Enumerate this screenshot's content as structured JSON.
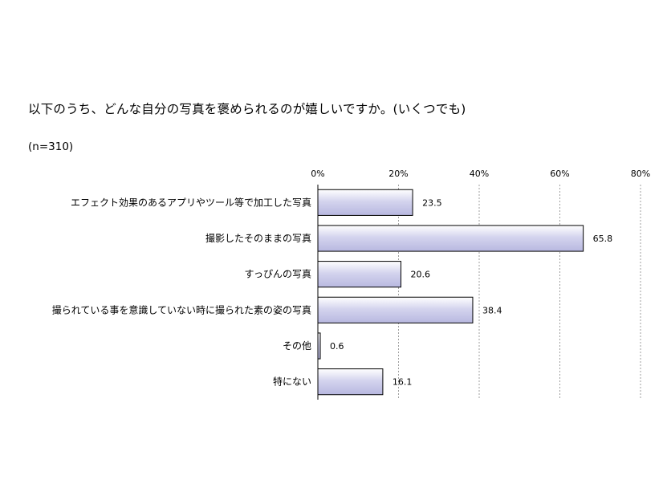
{
  "chart_data": {
    "type": "bar",
    "orientation": "horizontal",
    "title": "以下のうち、どんな自分の写真を褒められるのが嬉しいですか。(いくつでも)",
    "subtitle": "(n=310)",
    "categories": [
      "エフェクト効果のあるアプリやツール等で加工した写真",
      "撮影したそのままの写真",
      "すっぴんの写真",
      "撮られている事を意識していない時に撮られた素の姿の写真",
      "その他",
      "特にない"
    ],
    "values": [
      23.5,
      65.8,
      20.6,
      38.4,
      0.6,
      16.1
    ],
    "value_labels": [
      "23.5",
      "65.8",
      "20.6",
      "38.4",
      "0.6",
      "16.1"
    ],
    "xlim": [
      0,
      80
    ],
    "x_ticks": [
      "0%",
      "20%",
      "40%",
      "60%",
      "80%"
    ],
    "x_tick_values": [
      0,
      20,
      40,
      60,
      80
    ],
    "axis_position": "top",
    "grid": true,
    "legend": "none",
    "bar_fill_color": "#d8d8f0",
    "bar_stroke_color": "#000000"
  }
}
